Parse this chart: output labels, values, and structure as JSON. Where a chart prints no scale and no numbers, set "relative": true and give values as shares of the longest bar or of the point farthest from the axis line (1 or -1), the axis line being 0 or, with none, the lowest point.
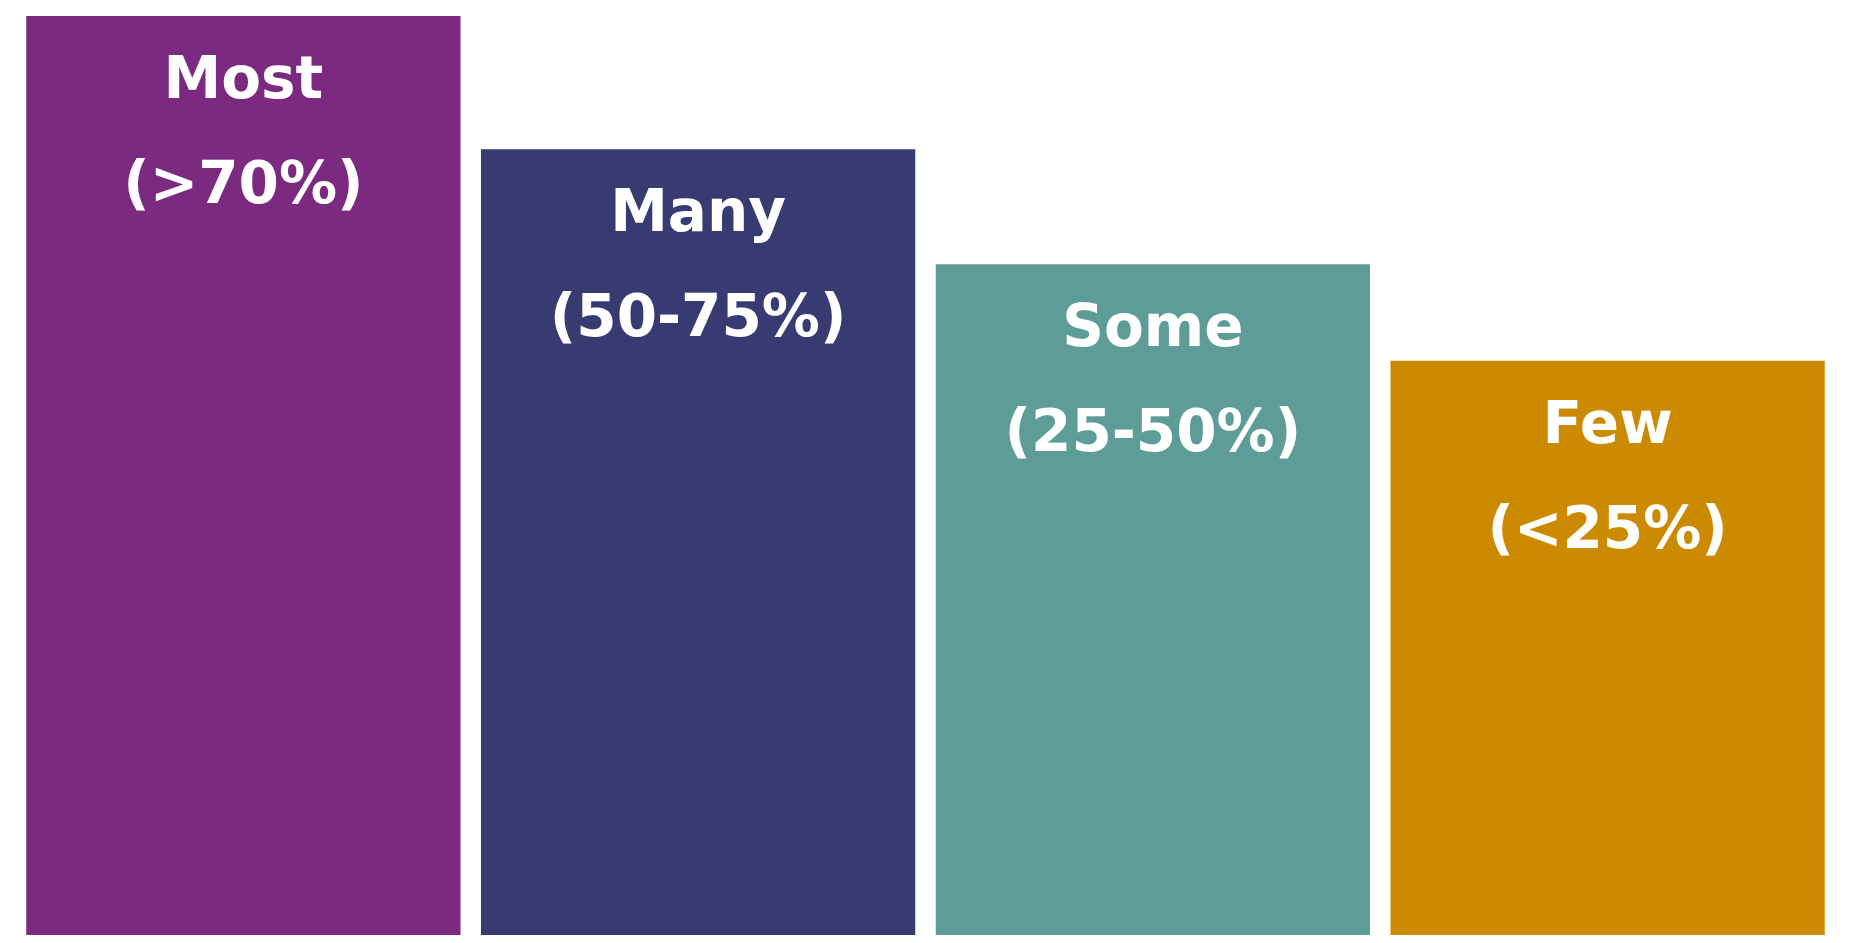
{
  "chart_data": {
    "type": "bar",
    "relative": true,
    "categories": [
      "Most (>70%)",
      "Many (50-75%)",
      "Some (25-50%)",
      "Few (<25%)"
    ],
    "values": [
      1,
      0.855,
      0.73,
      0.625
    ],
    "colors": [
      "#7b2a7f",
      "#373b72",
      "#5e9c98",
      "#cc8a00"
    ]
  }
}
